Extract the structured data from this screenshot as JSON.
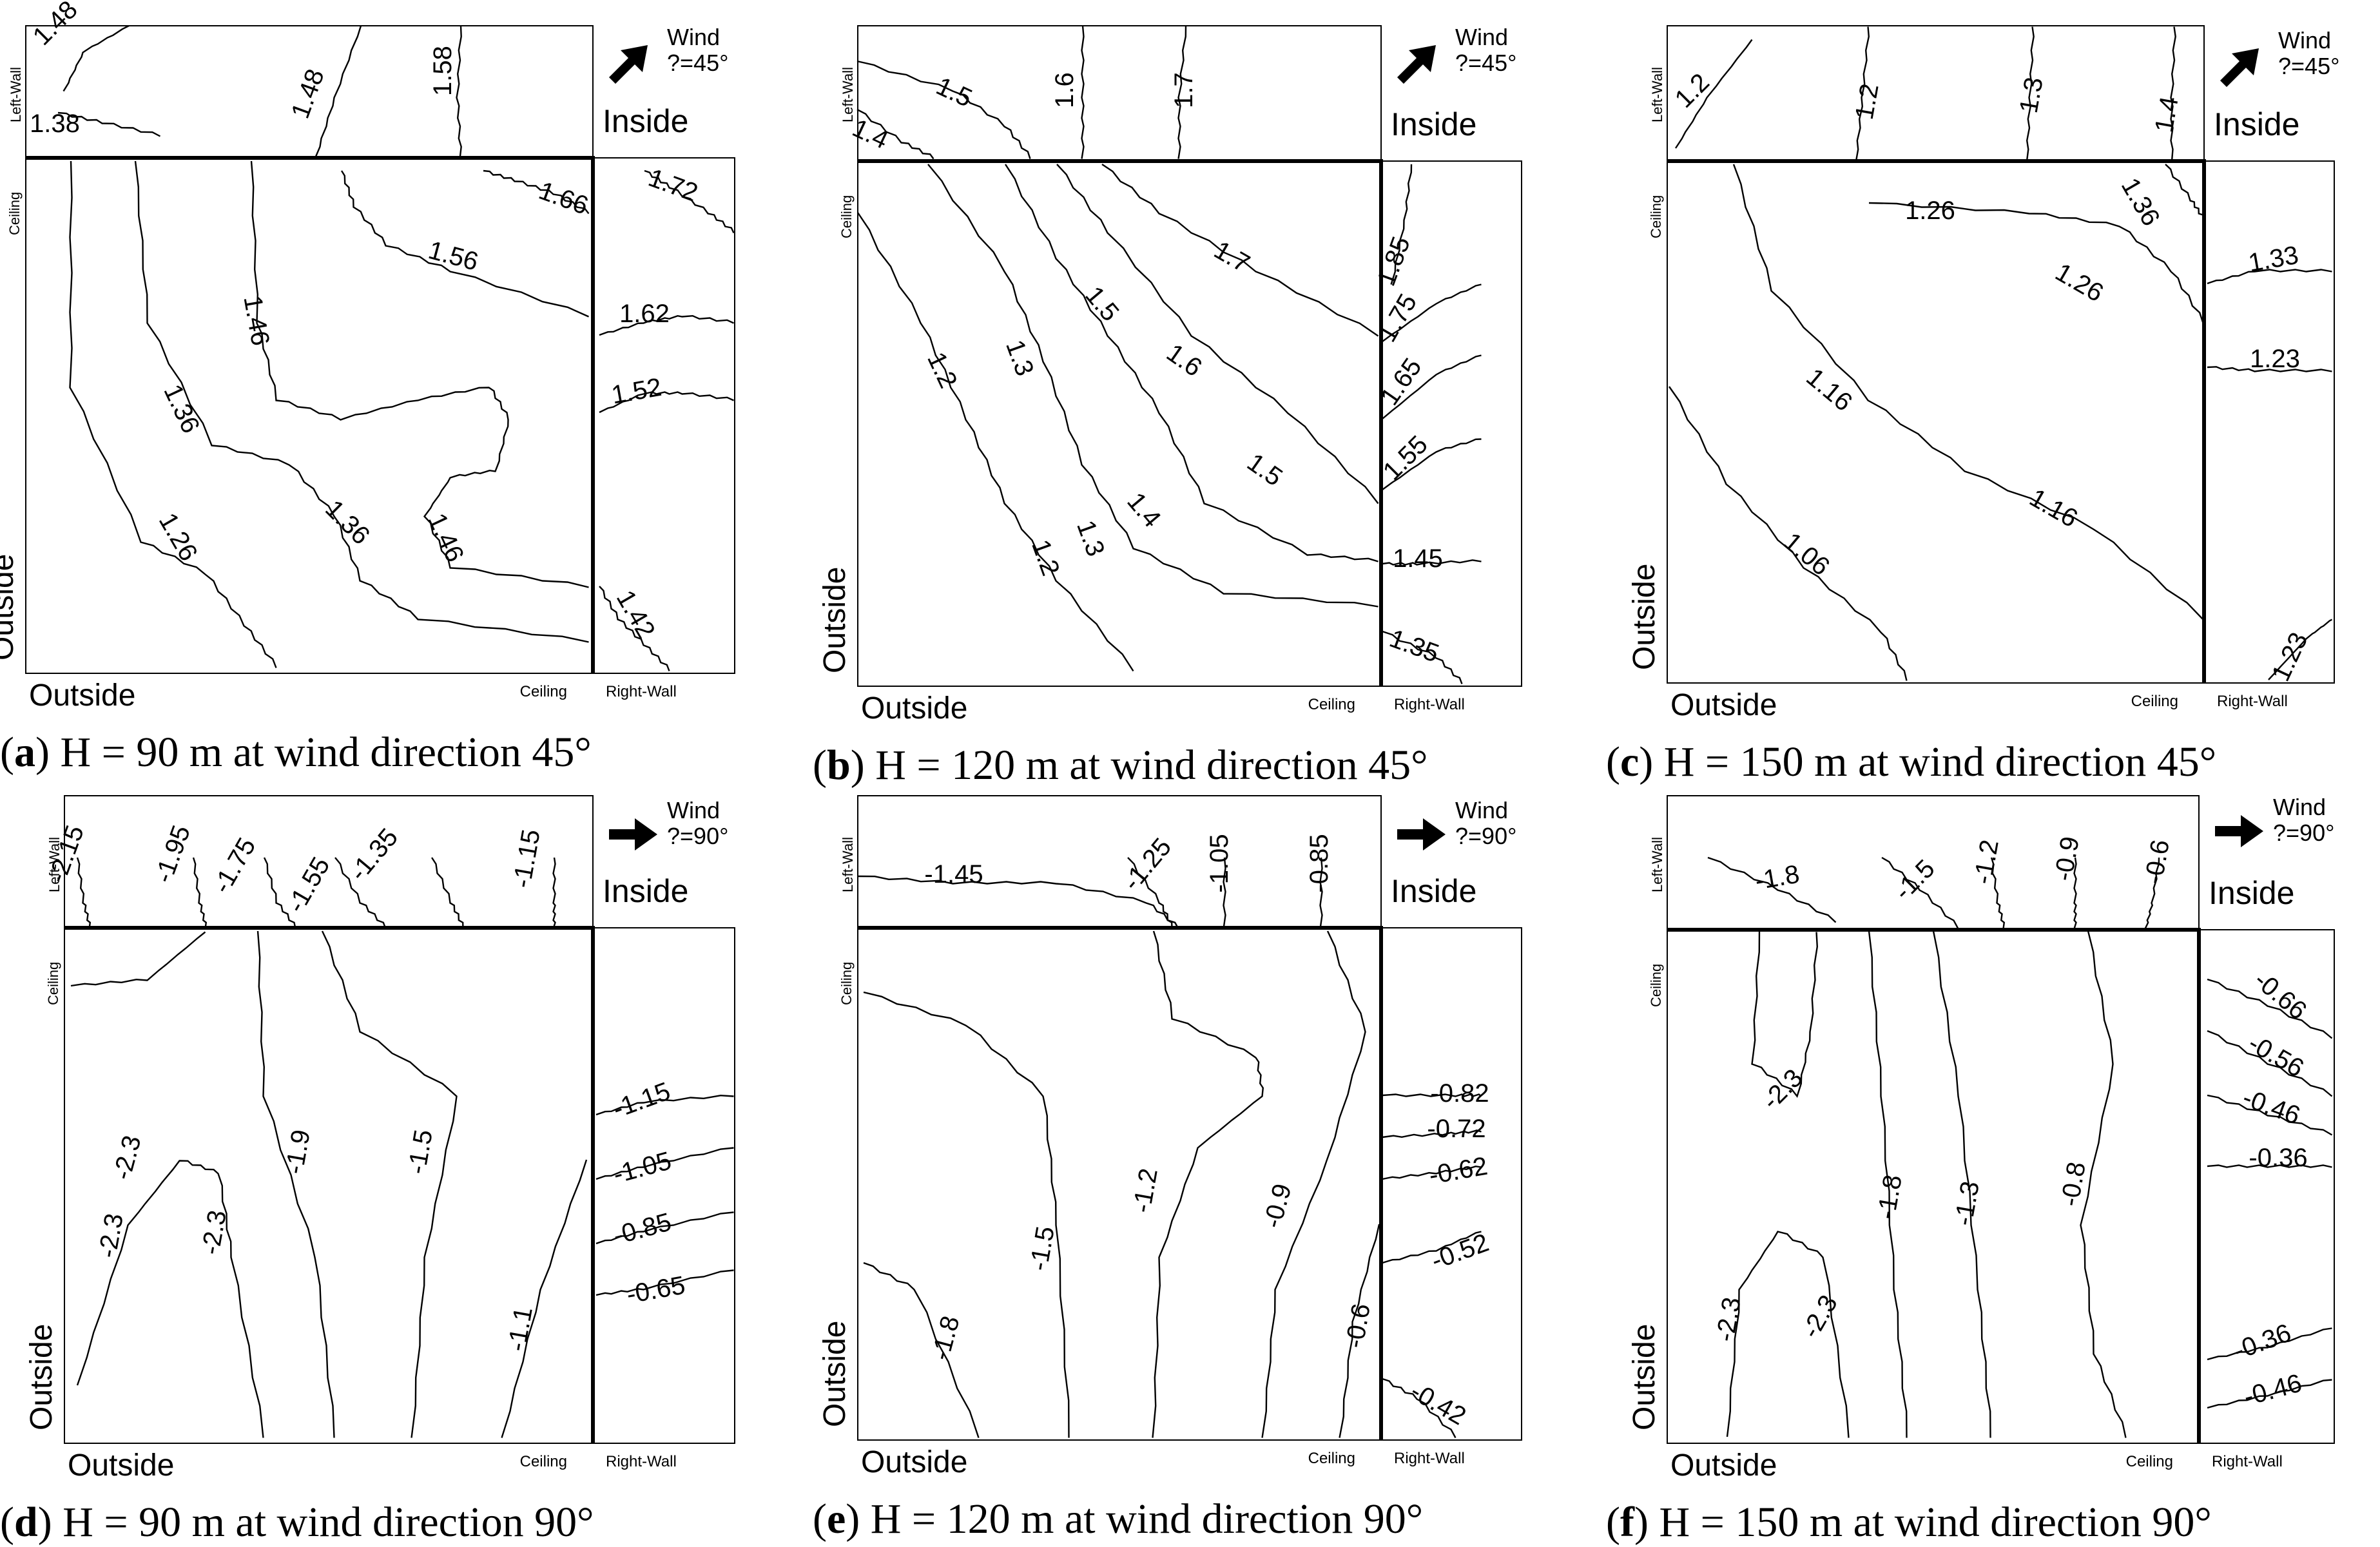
{
  "labels": {
    "wind": "Wind",
    "inside": "Inside",
    "outside": "Outside",
    "left_wall": "Left-Wall",
    "right_wall": "Right-Wall",
    "ceiling": "Ceiling"
  },
  "panels": [
    {
      "id": "a",
      "caption_letter": "a",
      "caption_text": " H = 90 m at wind direction 45°",
      "angle_label": "?=45°",
      "arrow": "diagonal-arrow-icon",
      "top_labels": [
        "1.48",
        "1.38",
        "1.48",
        "1.58"
      ],
      "main_labels": [
        "1.66",
        "1.56",
        "1.46",
        "1.36",
        "1.26",
        "1.36",
        "1.46"
      ],
      "right_labels": [
        "1.72",
        "1.62",
        "1.52",
        "1.42"
      ]
    },
    {
      "id": "b",
      "caption_letter": "b",
      "caption_text": " H = 120 m at wind direction 45°",
      "angle_label": "?=45°",
      "arrow": "diagonal-arrow-icon",
      "top_labels": [
        "1.5",
        "1.4",
        "1.6",
        "1.7"
      ],
      "main_labels": [
        "1.7",
        "1.6",
        "1.5",
        "1.5",
        "1.4",
        "1.3",
        "1.3",
        "1.2",
        "1.2"
      ],
      "right_labels": [
        "1.85",
        "1.75",
        "1.65",
        "1.55",
        "1.45",
        "1.35"
      ]
    },
    {
      "id": "c",
      "caption_letter": "c",
      "caption_text": " H = 150 m at wind direction 45°",
      "angle_label": "?=45°",
      "arrow": "diagonal-arrow-icon",
      "top_labels": [
        "1.2",
        "1.2",
        "1.3",
        "1.4"
      ],
      "main_labels": [
        "1.26",
        "1.36",
        "1.26",
        "1.16",
        "1.16",
        "1.06"
      ],
      "right_labels": [
        "1.33",
        "1.23",
        "1.23"
      ]
    },
    {
      "id": "d",
      "caption_letter": "d",
      "caption_text": " H = 90 m at wind direction 90°",
      "angle_label": "?=90°",
      "arrow": "right-arrow-icon",
      "top_labels": [
        "-2.15",
        "-1.95",
        "-1.75",
        "-1.55",
        "-1.35",
        "-1.15"
      ],
      "main_labels": [
        "-2.3",
        "-2.3",
        "-2.3",
        "-1.9",
        "-1.5",
        "-1.1"
      ],
      "right_labels": [
        "-1.15",
        "-1.05",
        "-0.85",
        "-0.65"
      ]
    },
    {
      "id": "e",
      "caption_letter": "e",
      "caption_text": " H = 120 m at wind direction 90°",
      "angle_label": "?=90°",
      "arrow": "right-arrow-icon",
      "top_labels": [
        "-1.45",
        "-1.25",
        "-1.05",
        "-0.85"
      ],
      "main_labels": [
        "-1.8",
        "-1.5",
        "-1.2",
        "-0.9",
        "-0.6"
      ],
      "right_labels": [
        "-0.82",
        "-0.72",
        "-0.62",
        "-0.52",
        "-0.42"
      ]
    },
    {
      "id": "f",
      "caption_letter": "f",
      "caption_text": " H = 150 m at wind direction 90°",
      "angle_label": "?=90°",
      "arrow": "right-arrow-icon",
      "top_labels": [
        "-1.8",
        "-1.5",
        "-1.2",
        "-0.9",
        "-0.6"
      ],
      "main_labels": [
        "-2.3",
        "-2.3",
        "-2.3",
        "-1.8",
        "-1.3",
        "-0.8"
      ],
      "right_labels": [
        "-0.66",
        "-0.56",
        "-0.46",
        "-0.36",
        "-0.36",
        "-0.46"
      ]
    }
  ]
}
